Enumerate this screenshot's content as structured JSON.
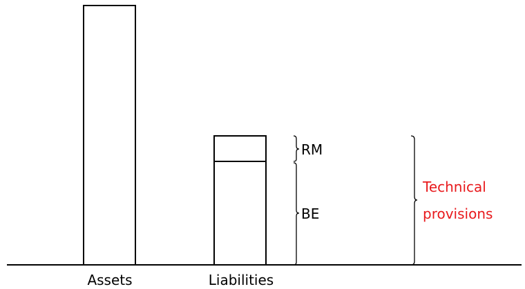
{
  "labels": {
    "assets": "Assets",
    "liabilities": "Liabilities",
    "rm": "RM",
    "be": "BE",
    "technical_line1": "Technical",
    "technical_line2": "provisions"
  },
  "colors": {
    "line": "#000000",
    "highlight": "#e8191c"
  }
}
